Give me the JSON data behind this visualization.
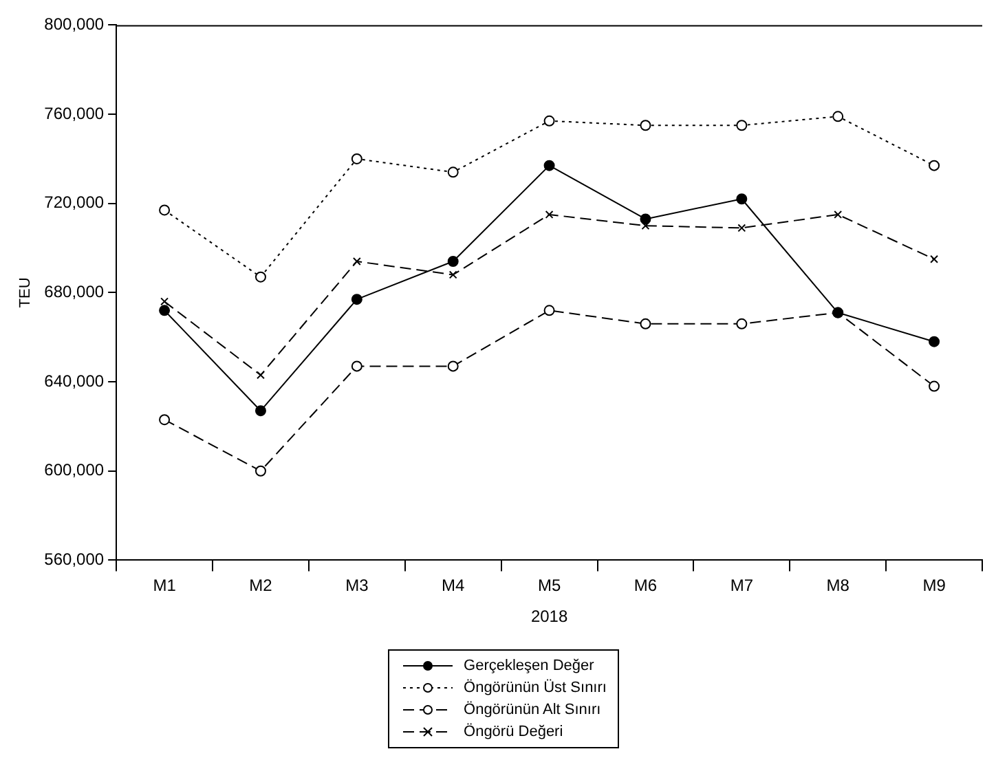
{
  "chart_data": {
    "type": "line",
    "xlabel": "2018",
    "ylabel": "TEU",
    "categories": [
      "M1",
      "M2",
      "M3",
      "M4",
      "M5",
      "M6",
      "M7",
      "M8",
      "M9"
    ],
    "series": [
      {
        "name": "Gerçekleşen Değer",
        "color": "#000000",
        "line_style": "solid",
        "marker": "circle",
        "values": [
          672000,
          627000,
          677000,
          694000,
          737000,
          713000,
          722000,
          671000,
          658000
        ]
      },
      {
        "name": "Öngörünün Üst Sınırı",
        "color": "#000000",
        "line_style": "dotted",
        "marker": "circle",
        "values": [
          717000,
          687000,
          740000,
          734000,
          757000,
          755000,
          755000,
          759000,
          737000
        ]
      },
      {
        "name": "Öngörünün Alt Sınırı",
        "color": "#000000",
        "line_style": "dashed",
        "marker": "circle",
        "values": [
          623000,
          600000,
          647000,
          647000,
          672000,
          666000,
          666000,
          671000,
          638000
        ]
      },
      {
        "name": "Öngörü Değeri",
        "color": "#000000",
        "line_style": "dashed",
        "marker": "cross",
        "values": [
          676000,
          643000,
          694000,
          688000,
          715000,
          710000,
          709000,
          715000,
          695000
        ]
      }
    ],
    "ylim": [
      560000,
      800000
    ],
    "yticks": [
      {
        "value": 560000,
        "label": "560,000"
      },
      {
        "value": 600000,
        "label": "600,000"
      },
      {
        "value": 640000,
        "label": "640,000"
      },
      {
        "value": 680000,
        "label": "680,000"
      },
      {
        "value": 720000,
        "label": "720,000"
      },
      {
        "value": 760000,
        "label": "760,000"
      },
      {
        "value": 800000,
        "label": "800,000"
      }
    ],
    "grid": false,
    "legend": "bottom"
  }
}
